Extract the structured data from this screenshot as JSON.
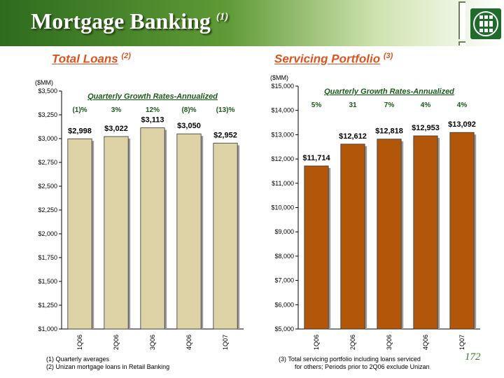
{
  "title": "Mortgage Banking",
  "title_note": "(1)",
  "colors": {
    "loans_bar": "#ddd3a6",
    "servicing_bar": "#b2570a",
    "accent": "#d9541e",
    "header": "#2e6b1e"
  },
  "chart_data": [
    {
      "type": "bar",
      "title": "Total Loans",
      "title_note": "(2)",
      "ylabel": "($MM)",
      "categories": [
        "1Q06",
        "2Q06",
        "3Q06",
        "4Q06",
        "1Q07"
      ],
      "values": [
        2998,
        3022,
        3113,
        3050,
        2952
      ],
      "value_labels": [
        "$2,998",
        "$3,022",
        "$3,113",
        "$3,050",
        "$2,952"
      ],
      "ylim": [
        1000,
        3500
      ],
      "yticks": [
        1000,
        1250,
        1500,
        1750,
        2000,
        2250,
        2500,
        2750,
        3000,
        3250,
        3500
      ],
      "ytick_labels": [
        "$1,000",
        "$1,250",
        "$1,500",
        "$1,750",
        "$2,000",
        "$2,250",
        "$2,500",
        "$2,750",
        "$3,000",
        "$3,250",
        "$3,500"
      ],
      "growth_title": "Quarterly Growth Rates-Annualized",
      "growth_rates": [
        "(1)%",
        "3%",
        "12%",
        "(8)%",
        "(13)%"
      ]
    },
    {
      "type": "bar",
      "title": "Servicing Portfolio",
      "title_note": "(3)",
      "ylabel": "($MM)",
      "categories": [
        "1Q06",
        "2Q06",
        "3Q06",
        "4Q06",
        "1Q07"
      ],
      "values": [
        11714,
        12612,
        12818,
        12953,
        13092
      ],
      "value_labels": [
        "$11,714",
        "$12,612",
        "$12,818",
        "$12,953",
        "$13,092"
      ],
      "ylim": [
        5000,
        15000
      ],
      "yticks": [
        5000,
        6000,
        7000,
        8000,
        9000,
        10000,
        11000,
        12000,
        13000,
        14000,
        15000
      ],
      "ytick_labels": [
        "$5,000",
        "$6,000",
        "$7,000",
        "$8,000",
        "$9,000",
        "$10,000",
        "$11,000",
        "$12,000",
        "$13,000",
        "$14,000",
        "$15,000"
      ],
      "growth_title": "Quarterly Growth Rates-Annualized",
      "growth_rates": [
        "5%",
        "31",
        "7%",
        "4%",
        "4%"
      ]
    }
  ],
  "footnotes_left": [
    "(1)   Quarterly averages",
    "(2)   Unizan mortgage loans in Retail Banking"
  ],
  "footnote_right": [
    "(3)  Total servicing portfolio including loans serviced",
    "for others; Periods prior to 2Q06 exclude Unizan"
  ],
  "page_number": "172"
}
